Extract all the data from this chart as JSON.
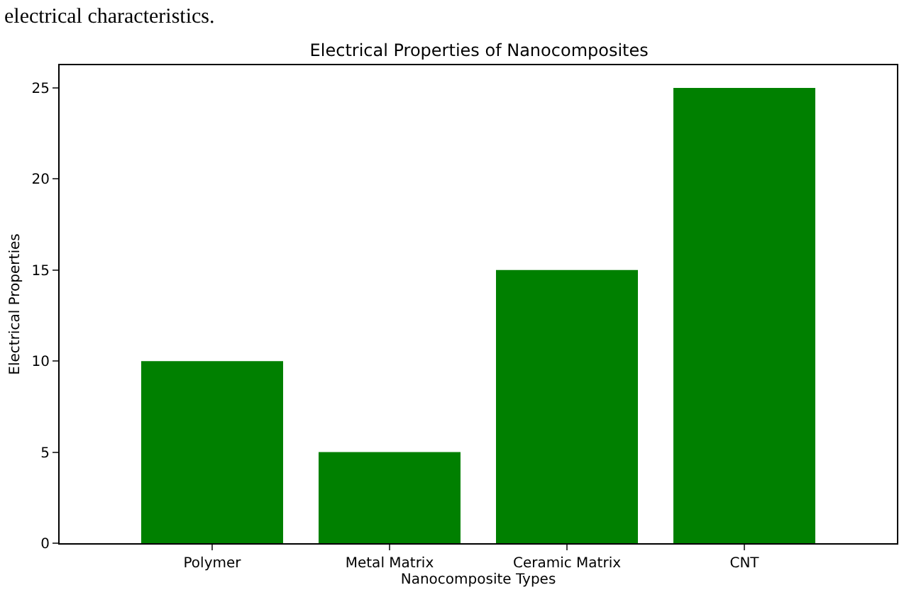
{
  "chart_data": {
    "type": "bar",
    "title": "Electrical Properties of Nanocomposites",
    "xlabel": "Nanocomposite Types",
    "ylabel": "Electrical Properties",
    "categories": [
      "Polymer",
      "Metal Matrix",
      "Ceramic Matrix",
      "CNT"
    ],
    "values": [
      10,
      5,
      15,
      25
    ],
    "color": "#008000",
    "ylim": [
      0,
      26.25
    ],
    "yticks": [
      0,
      5,
      10,
      15,
      20,
      25
    ],
    "annotations": [
      "electrical characteristics."
    ]
  }
}
